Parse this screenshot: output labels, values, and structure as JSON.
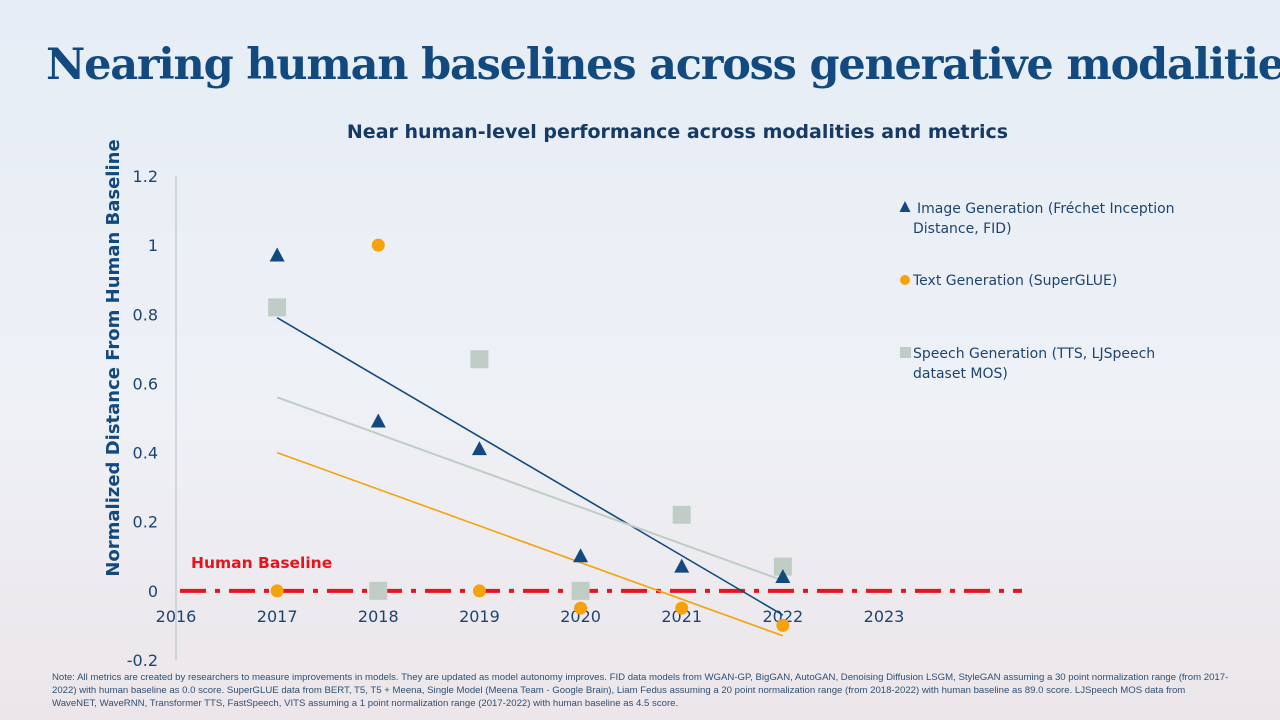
{
  "title": "Nearing human baselines across generative modalities",
  "chart_data": {
    "type": "scatter",
    "title": "Near human-level performance across modalities and metrics",
    "xlabel": "",
    "ylabel": "Normalized Distance From Human Baseline",
    "xlim": [
      2016,
      2023
    ],
    "ylim": [
      -0.2,
      1.2
    ],
    "x_ticks": [
      "2016",
      "2017",
      "2018",
      "2019",
      "2020",
      "2021",
      "2022",
      "2023"
    ],
    "y_ticks": [
      "1.2",
      "1",
      "0.8",
      "0.6",
      "0.4",
      "0.2",
      "0",
      "-0.2"
    ],
    "legend_position": "right",
    "baseline": {
      "label": "Human Baseline",
      "value": 0,
      "color": "#e8141c"
    },
    "series": [
      {
        "name": "Image Generation (Fréchet Inception Distance, FID)",
        "legend_lines": [
          "Image Generation (Fréchet Inception",
          "Distance, FID)"
        ],
        "marker": "triangle",
        "color": "#124a80",
        "points": [
          [
            2017,
            0.97
          ],
          [
            2018,
            0.49
          ],
          [
            2019,
            0.41
          ],
          [
            2020,
            0.1
          ],
          [
            2021,
            0.07
          ],
          [
            2022,
            0.04
          ]
        ],
        "trend": [
          [
            2017,
            0.79
          ],
          [
            2022,
            -0.07
          ]
        ]
      },
      {
        "name": "Text Generation (SuperGLUE)",
        "legend_lines": [
          "Text Generation (SuperGLUE)"
        ],
        "marker": "circle",
        "color": "#f5a20c",
        "points": [
          [
            2017,
            0.0
          ],
          [
            2018,
            1.0
          ],
          [
            2019,
            0.0
          ],
          [
            2020,
            -0.05
          ],
          [
            2021,
            -0.05
          ],
          [
            2022,
            -0.1
          ]
        ],
        "trend": [
          [
            2017,
            0.4
          ],
          [
            2022,
            -0.13
          ]
        ]
      },
      {
        "name": "Speech Generation (TTS, LJSpeech dataset MOS)",
        "legend_lines": [
          "Speech Generation (TTS, LJSpeech",
          "dataset MOS)"
        ],
        "marker": "square",
        "color": "#bfcdc6",
        "points": [
          [
            2017,
            0.82
          ],
          [
            2018,
            0.0
          ],
          [
            2019,
            0.67
          ],
          [
            2020,
            0.0
          ],
          [
            2021,
            0.22
          ],
          [
            2022,
            0.07
          ]
        ],
        "trend": [
          [
            2017,
            0.56
          ],
          [
            2022,
            0.03
          ]
        ]
      }
    ]
  },
  "note": "Note: All metrics are created by researchers to measure improvements in models. They are updated as model autonomy improves. FID data models from WGAN-GP, BigGAN, AutoGAN, Denoising Diffusion LSGM, StyleGAN assuming a 30 point normalization range (from 2017-2022) with human baseline as 0.0 score. SuperGLUE data from BERT, T5, T5 + Meena, Single Model (Meena Team - Google Brain), Liam Fedus assuming a 20 point normalization range (from 2018-2022) with human baseline as 89.0 score. LJSpeech MOS data from WaveNET, WaveRNN, Transformer TTS, FastSpeech, VITS assuming a 1 point normalization range (2017-2022) with human baseline as 4.5 score."
}
